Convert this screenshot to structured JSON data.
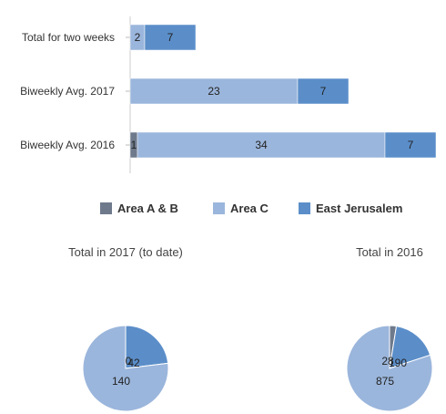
{
  "chart_data": [
    {
      "type": "bar",
      "orientation": "horizontal",
      "stacked": true,
      "title": "",
      "xlabel": "",
      "ylabel": "",
      "grid": false,
      "legend_position": "bottom",
      "categories": [
        "Total for two weeks",
        "Biweekly Avg. 2017",
        "Biweekly Avg. 2016"
      ],
      "series": [
        {
          "name": "Area A & B",
          "color": "#6e7a8c",
          "values": [
            0,
            0,
            1
          ],
          "labels": [
            "0",
            "0",
            "1"
          ]
        },
        {
          "name": "Area C",
          "color": "#9bb6dc",
          "values": [
            2,
            23,
            34
          ],
          "labels": [
            "2",
            "23",
            "34"
          ]
        },
        {
          "name": "East Jerusalem",
          "color": "#5b8ec9",
          "values": [
            7,
            7,
            7
          ],
          "labels": [
            "7",
            "7",
            "7"
          ]
        }
      ]
    },
    {
      "type": "pie",
      "title": "Total in 2017 (to date)",
      "slices": [
        {
          "name": "Area A & B",
          "value": 0,
          "label": "0",
          "color": "#6e7a8c"
        },
        {
          "name": "Area C",
          "value": 140,
          "label": "140",
          "color": "#9bb6dc"
        },
        {
          "name": "East Jerusalem",
          "value": 42,
          "label": "42",
          "color": "#5b8ec9"
        }
      ]
    },
    {
      "type": "pie",
      "title": "Total in 2016",
      "slices": [
        {
          "name": "Area A & B",
          "value": 28,
          "label": "28",
          "color": "#6e7a8c"
        },
        {
          "name": "Area C",
          "value": 875,
          "label": "875",
          "color": "#9bb6dc"
        },
        {
          "name": "East Jerusalem",
          "value": 190,
          "label": "190",
          "color": "#5b8ec9"
        }
      ]
    }
  ]
}
